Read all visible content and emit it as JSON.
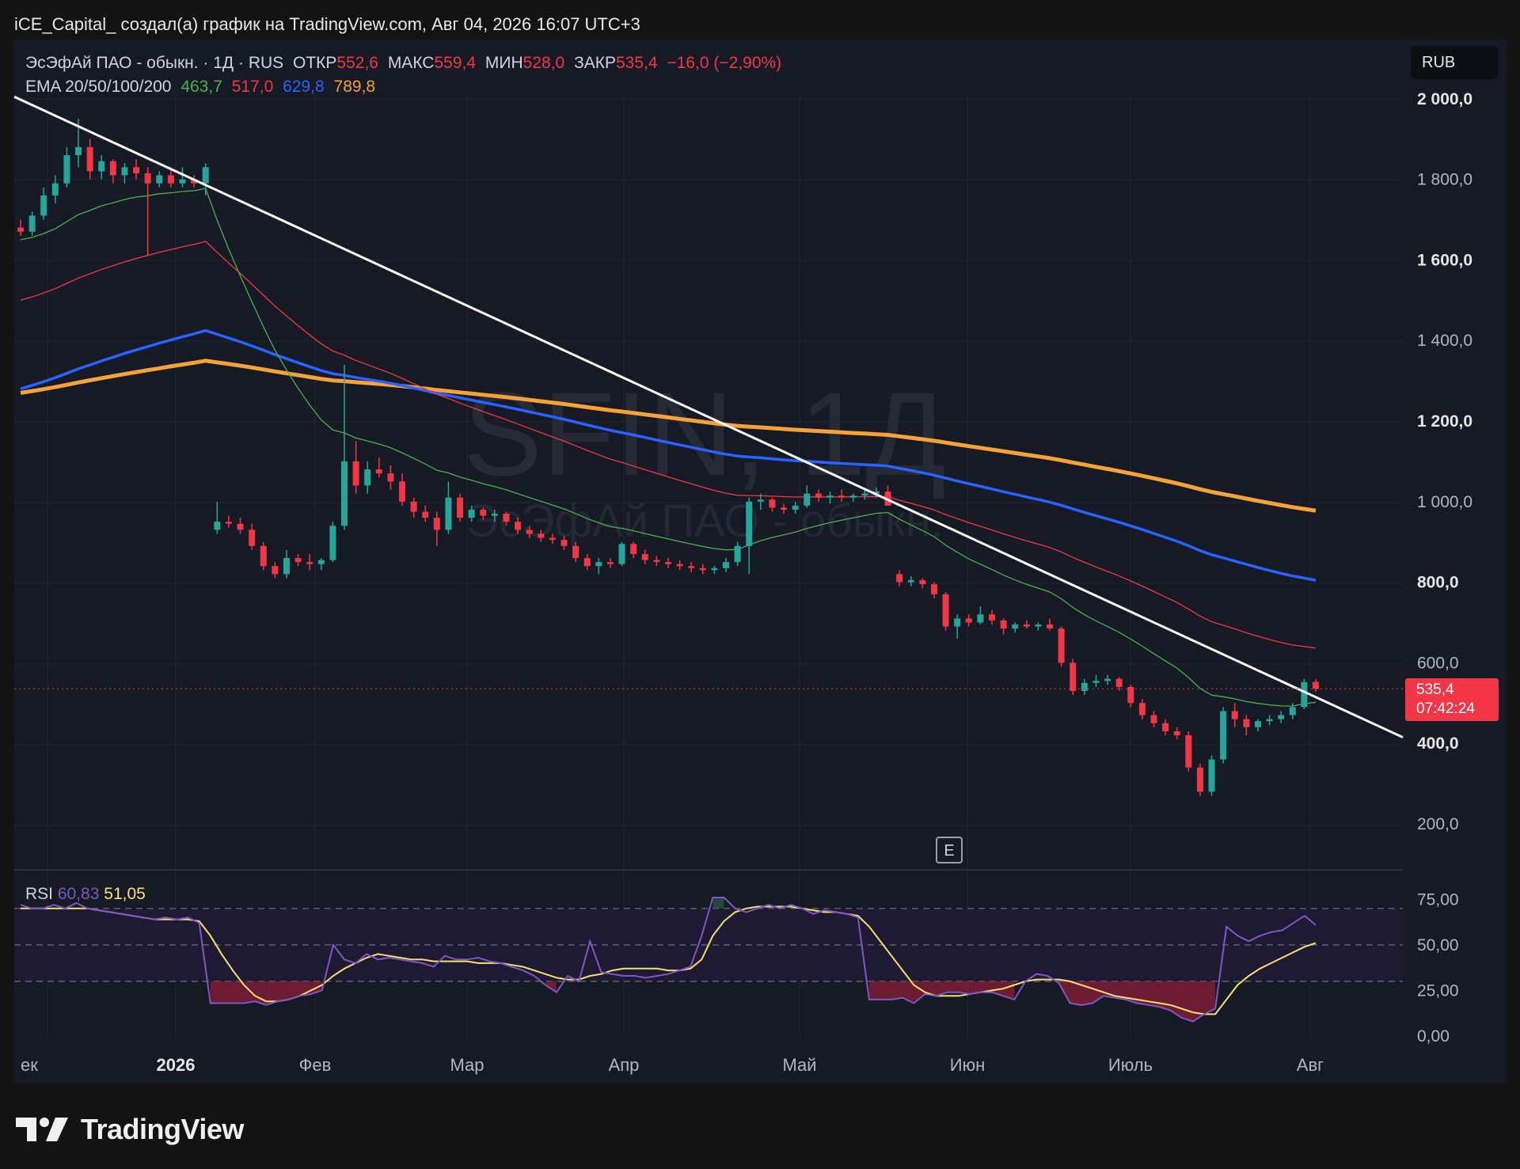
{
  "header": {
    "attribution": "iCE_Capital_ создал(а) график на TradingView.com, Авг 04, 2026 16:07 UTC+3"
  },
  "legend": {
    "symbol": "ЭсЭфАй ПАО - обыкн. · 1Д · RUS",
    "open_label": "ОТКР",
    "open_value": "552,6",
    "high_label": "МАКС",
    "high_value": "559,4",
    "low_label": "МИН",
    "low_value": "528,0",
    "close_label": "ЗАКР",
    "close_value": "535,4",
    "change": "−16,0 (−2,90%)",
    "ema_label": "EMA 20/50/100/200",
    "ema20": "463,7",
    "ema50": "517,0",
    "ema100": "629,8",
    "ema200": "789,8"
  },
  "currency": "RUB",
  "watermark": {
    "ticker": "SFIN, 1Д",
    "name": "ЭсЭфАй ПАО - обыкн."
  },
  "price_badge": {
    "price": "535,4",
    "countdown": "07:42:24"
  },
  "event_marker": "E",
  "rsi": {
    "label": "RSI",
    "value": "60,83",
    "ma_value": "51,05"
  },
  "brand": "TradingView",
  "colors": {
    "up": "#26a69a",
    "down": "#f23645",
    "ema20": "#4caf50",
    "ema50": "#f23645",
    "ema100": "#2962ff",
    "ema200": "#f6a23a",
    "rsi": "#7e57c2",
    "rsi_ma": "#f7e16e",
    "trendline": "#ffffff",
    "background": "#161a25"
  },
  "chart_data": [
    {
      "type": "candlestick",
      "title": "ЭсЭфАй ПАО - обыкн. · 1Д · RUS",
      "x_ticks": [
        "ек",
        "2026",
        "Фев",
        "Мар",
        "Апр",
        "Май",
        "Июн",
        "Июль",
        "Авг"
      ],
      "y_ticks": [
        "2 000,0",
        "1 800,0",
        "1 600,0",
        "1 400,0",
        "1 200,0",
        "1 000,0",
        "800,0",
        "600,0",
        "400,0",
        "200,0"
      ],
      "ylim": [
        100,
        2040
      ],
      "grid": true,
      "candles": [
        {
          "o": 1680,
          "h": 1700,
          "l": 1660,
          "c": 1670
        },
        {
          "o": 1670,
          "h": 1720,
          "l": 1660,
          "c": 1710
        },
        {
          "o": 1710,
          "h": 1780,
          "l": 1700,
          "c": 1760
        },
        {
          "o": 1760,
          "h": 1810,
          "l": 1740,
          "c": 1790
        },
        {
          "o": 1790,
          "h": 1880,
          "l": 1780,
          "c": 1860
        },
        {
          "o": 1860,
          "h": 1950,
          "l": 1830,
          "c": 1880
        },
        {
          "o": 1880,
          "h": 1900,
          "l": 1800,
          "c": 1820
        },
        {
          "o": 1820,
          "h": 1860,
          "l": 1800,
          "c": 1845
        },
        {
          "o": 1845,
          "h": 1850,
          "l": 1790,
          "c": 1810
        },
        {
          "o": 1810,
          "h": 1840,
          "l": 1790,
          "c": 1830
        },
        {
          "o": 1830,
          "h": 1850,
          "l": 1800,
          "c": 1815
        },
        {
          "o": 1815,
          "h": 1830,
          "l": 1610,
          "c": 1790
        },
        {
          "o": 1790,
          "h": 1820,
          "l": 1780,
          "c": 1810
        },
        {
          "o": 1810,
          "h": 1830,
          "l": 1780,
          "c": 1790
        },
        {
          "o": 1790,
          "h": 1830,
          "l": 1780,
          "c": 1800
        },
        {
          "o": 1800,
          "h": 1810,
          "l": 1780,
          "c": 1790
        },
        {
          "o": 1790,
          "h": 1840,
          "l": 1760,
          "c": 1830
        },
        {
          "o": 930,
          "h": 1000,
          "l": 920,
          "c": 950
        },
        {
          "o": 950,
          "h": 965,
          "l": 935,
          "c": 945
        },
        {
          "o": 945,
          "h": 960,
          "l": 920,
          "c": 930
        },
        {
          "o": 930,
          "h": 945,
          "l": 880,
          "c": 890
        },
        {
          "o": 890,
          "h": 900,
          "l": 830,
          "c": 840
        },
        {
          "o": 840,
          "h": 850,
          "l": 810,
          "c": 820
        },
        {
          "o": 820,
          "h": 880,
          "l": 810,
          "c": 860
        },
        {
          "o": 860,
          "h": 870,
          "l": 840,
          "c": 850
        },
        {
          "o": 850,
          "h": 870,
          "l": 830,
          "c": 845
        },
        {
          "o": 845,
          "h": 860,
          "l": 830,
          "c": 855
        },
        {
          "o": 855,
          "h": 950,
          "l": 850,
          "c": 940
        },
        {
          "o": 940,
          "h": 1340,
          "l": 930,
          "c": 1100
        },
        {
          "o": 1100,
          "h": 1150,
          "l": 1020,
          "c": 1040
        },
        {
          "o": 1040,
          "h": 1100,
          "l": 1020,
          "c": 1080
        },
        {
          "o": 1080,
          "h": 1110,
          "l": 1060,
          "c": 1070
        },
        {
          "o": 1070,
          "h": 1090,
          "l": 1030,
          "c": 1050
        },
        {
          "o": 1050,
          "h": 1070,
          "l": 990,
          "c": 1000
        },
        {
          "o": 1000,
          "h": 1010,
          "l": 960,
          "c": 975
        },
        {
          "o": 975,
          "h": 990,
          "l": 950,
          "c": 960
        },
        {
          "o": 960,
          "h": 975,
          "l": 890,
          "c": 930
        },
        {
          "o": 930,
          "h": 1050,
          "l": 920,
          "c": 1010
        },
        {
          "o": 1010,
          "h": 1020,
          "l": 950,
          "c": 960
        },
        {
          "o": 960,
          "h": 990,
          "l": 950,
          "c": 980
        },
        {
          "o": 980,
          "h": 985,
          "l": 955,
          "c": 965
        },
        {
          "o": 965,
          "h": 980,
          "l": 950,
          "c": 970
        },
        {
          "o": 970,
          "h": 975,
          "l": 940,
          "c": 950
        },
        {
          "o": 950,
          "h": 960,
          "l": 920,
          "c": 930
        },
        {
          "o": 930,
          "h": 940,
          "l": 910,
          "c": 920
        },
        {
          "o": 920,
          "h": 930,
          "l": 900,
          "c": 910
        },
        {
          "o": 910,
          "h": 920,
          "l": 895,
          "c": 905
        },
        {
          "o": 905,
          "h": 915,
          "l": 880,
          "c": 890
        },
        {
          "o": 890,
          "h": 900,
          "l": 850,
          "c": 860
        },
        {
          "o": 860,
          "h": 870,
          "l": 830,
          "c": 840
        },
        {
          "o": 840,
          "h": 860,
          "l": 820,
          "c": 850
        },
        {
          "o": 850,
          "h": 860,
          "l": 835,
          "c": 845
        },
        {
          "o": 845,
          "h": 900,
          "l": 840,
          "c": 895
        },
        {
          "o": 895,
          "h": 900,
          "l": 860,
          "c": 870
        },
        {
          "o": 870,
          "h": 880,
          "l": 845,
          "c": 855
        },
        {
          "o": 855,
          "h": 865,
          "l": 840,
          "c": 850
        },
        {
          "o": 850,
          "h": 860,
          "l": 835,
          "c": 845
        },
        {
          "o": 845,
          "h": 855,
          "l": 830,
          "c": 840
        },
        {
          "o": 840,
          "h": 850,
          "l": 825,
          "c": 835
        },
        {
          "o": 835,
          "h": 845,
          "l": 820,
          "c": 830
        },
        {
          "o": 830,
          "h": 840,
          "l": 820,
          "c": 835
        },
        {
          "o": 835,
          "h": 860,
          "l": 825,
          "c": 850
        },
        {
          "o": 850,
          "h": 900,
          "l": 840,
          "c": 890
        },
        {
          "o": 890,
          "h": 1010,
          "l": 820,
          "c": 1000
        },
        {
          "o": 1000,
          "h": 1020,
          "l": 980,
          "c": 1005
        },
        {
          "o": 1005,
          "h": 1010,
          "l": 975,
          "c": 985
        },
        {
          "o": 985,
          "h": 995,
          "l": 970,
          "c": 980
        },
        {
          "o": 980,
          "h": 1000,
          "l": 970,
          "c": 990
        },
        {
          "o": 990,
          "h": 1040,
          "l": 985,
          "c": 1020
        },
        {
          "o": 1020,
          "h": 1030,
          "l": 1000,
          "c": 1010
        },
        {
          "o": 1010,
          "h": 1025,
          "l": 995,
          "c": 1015
        },
        {
          "o": 1015,
          "h": 1030,
          "l": 1000,
          "c": 1010
        },
        {
          "o": 1010,
          "h": 1020,
          "l": 1000,
          "c": 1015
        },
        {
          "o": 1015,
          "h": 1030,
          "l": 1005,
          "c": 1020
        },
        {
          "o": 1020,
          "h": 1035,
          "l": 1010,
          "c": 1025
        },
        {
          "o": 1025,
          "h": 1040,
          "l": 1000,
          "c": 990
        },
        {
          "o": 820,
          "h": 830,
          "l": 790,
          "c": 800
        },
        {
          "o": 800,
          "h": 815,
          "l": 790,
          "c": 805
        },
        {
          "o": 805,
          "h": 810,
          "l": 785,
          "c": 795
        },
        {
          "o": 795,
          "h": 800,
          "l": 760,
          "c": 770
        },
        {
          "o": 770,
          "h": 775,
          "l": 680,
          "c": 690
        },
        {
          "o": 690,
          "h": 720,
          "l": 660,
          "c": 710
        },
        {
          "o": 710,
          "h": 720,
          "l": 690,
          "c": 700
        },
        {
          "o": 700,
          "h": 740,
          "l": 695,
          "c": 720
        },
        {
          "o": 720,
          "h": 730,
          "l": 695,
          "c": 705
        },
        {
          "o": 705,
          "h": 710,
          "l": 670,
          "c": 685
        },
        {
          "o": 685,
          "h": 700,
          "l": 675,
          "c": 695
        },
        {
          "o": 695,
          "h": 705,
          "l": 685,
          "c": 690
        },
        {
          "o": 690,
          "h": 700,
          "l": 680,
          "c": 695
        },
        {
          "o": 695,
          "h": 710,
          "l": 680,
          "c": 685
        },
        {
          "o": 685,
          "h": 690,
          "l": 590,
          "c": 600
        },
        {
          "o": 600,
          "h": 610,
          "l": 520,
          "c": 530
        },
        {
          "o": 530,
          "h": 560,
          "l": 520,
          "c": 550
        },
        {
          "o": 550,
          "h": 570,
          "l": 540,
          "c": 555
        },
        {
          "o": 555,
          "h": 570,
          "l": 545,
          "c": 560
        },
        {
          "o": 560,
          "h": 565,
          "l": 530,
          "c": 540
        },
        {
          "o": 540,
          "h": 545,
          "l": 490,
          "c": 500
        },
        {
          "o": 500,
          "h": 510,
          "l": 460,
          "c": 470
        },
        {
          "o": 470,
          "h": 480,
          "l": 440,
          "c": 450
        },
        {
          "o": 450,
          "h": 460,
          "l": 420,
          "c": 430
        },
        {
          "o": 430,
          "h": 440,
          "l": 410,
          "c": 420
        },
        {
          "o": 420,
          "h": 430,
          "l": 330,
          "c": 340
        },
        {
          "o": 340,
          "h": 350,
          "l": 270,
          "c": 280
        },
        {
          "o": 280,
          "h": 370,
          "l": 270,
          "c": 360
        },
        {
          "o": 360,
          "h": 490,
          "l": 350,
          "c": 480
        },
        {
          "o": 480,
          "h": 500,
          "l": 440,
          "c": 460
        },
        {
          "o": 460,
          "h": 470,
          "l": 420,
          "c": 440
        },
        {
          "o": 440,
          "h": 460,
          "l": 430,
          "c": 455
        },
        {
          "o": 455,
          "h": 470,
          "l": 445,
          "c": 460
        },
        {
          "o": 460,
          "h": 480,
          "l": 450,
          "c": 470
        },
        {
          "o": 470,
          "h": 500,
          "l": 460,
          "c": 490
        },
        {
          "o": 490,
          "h": 560,
          "l": 485,
          "c": 552
        },
        {
          "o": 552.6,
          "h": 559.4,
          "l": 528,
          "c": 535.4
        }
      ],
      "ema": {
        "ema20": {
          "name": "EMA 20",
          "last": 463.7
        },
        "ema50": {
          "name": "EMA 50",
          "last": 517.0
        },
        "ema100": {
          "name": "EMA 100",
          "last": 629.8
        },
        "ema200": {
          "name": "EMA 200",
          "last": 789.8
        }
      },
      "trendline": {
        "from": 2005,
        "to": 415
      }
    },
    {
      "type": "line",
      "title": "RSI",
      "y_ticks": [
        "75,00",
        "50,00",
        "25,00",
        "0,00"
      ],
      "ylim": [
        0,
        100
      ],
      "bands": [
        70,
        50,
        30
      ],
      "series": [
        {
          "name": "RSI",
          "values": [
            72,
            70,
            70,
            72,
            70,
            73,
            70,
            69,
            68,
            67,
            66,
            65,
            64,
            65,
            64,
            65,
            62,
            18,
            18,
            18,
            18,
            19,
            17,
            19,
            20,
            22,
            23,
            25,
            50,
            42,
            40,
            45,
            42,
            43,
            42,
            41,
            40,
            38,
            44,
            42,
            42,
            43,
            41,
            40,
            38,
            36,
            33,
            28,
            24,
            33,
            30,
            52,
            35,
            34,
            33,
            33,
            32,
            33,
            34,
            36,
            38,
            55,
            76,
            76,
            70,
            68,
            70,
            72,
            70,
            72,
            70,
            67,
            69,
            68,
            67,
            65,
            20,
            20,
            20,
            21,
            18,
            23,
            22,
            24,
            24,
            23,
            24,
            24,
            22,
            20,
            30,
            34,
            33,
            29,
            18,
            17,
            18,
            22,
            21,
            20,
            18,
            17,
            16,
            14,
            10,
            8,
            12,
            15,
            60,
            55,
            52,
            55,
            57,
            58,
            62,
            66,
            60.83
          ]
        },
        {
          "name": "RSI MA",
          "values": [
            70,
            70,
            70,
            70,
            70,
            70,
            70,
            69,
            68,
            67,
            66,
            65,
            64,
            64,
            64,
            64,
            63,
            55,
            45,
            36,
            28,
            22,
            19,
            19,
            20,
            22,
            25,
            28,
            33,
            37,
            40,
            43,
            45,
            44,
            43,
            42,
            42,
            41,
            41,
            41,
            41,
            40,
            40,
            40,
            39,
            38,
            36,
            34,
            32,
            31,
            31,
            33,
            34,
            36,
            37,
            37,
            37,
            37,
            36,
            36,
            37,
            42,
            55,
            63,
            68,
            70,
            71,
            71,
            71,
            71,
            70,
            69,
            68,
            68,
            67,
            66,
            60,
            52,
            44,
            36,
            28,
            24,
            22,
            22,
            22,
            23,
            24,
            25,
            26,
            28,
            30,
            31,
            31,
            31,
            30,
            28,
            26,
            24,
            22,
            21,
            20,
            19,
            18,
            17,
            15,
            13,
            12,
            12,
            20,
            28,
            33,
            37,
            40,
            43,
            46,
            49,
            51.05
          ]
        }
      ]
    }
  ]
}
